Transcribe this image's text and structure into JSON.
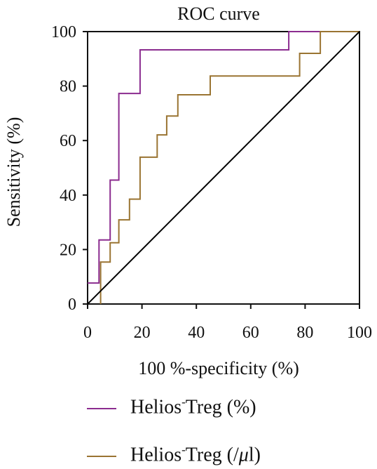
{
  "chart_data": {
    "type": "line",
    "title": "ROC curve",
    "xlabel": "100 %-specificity (%)",
    "ylabel": "Sensitivity (%)",
    "xlim": [
      0,
      100
    ],
    "ylim": [
      0,
      100
    ],
    "xticks": [
      "0",
      "20",
      "40",
      "60",
      "80",
      "100"
    ],
    "yticks": [
      "0",
      "20",
      "40",
      "60",
      "80",
      "100"
    ],
    "grid": false,
    "legend_position": "bottom",
    "series": [
      {
        "name": "Helios-Treg (%)",
        "color": "#8b2c8f",
        "x": [
          0,
          4.2,
          4.2,
          8.3,
          8.3,
          11.5,
          11.5,
          19.3,
          19.3,
          74,
          74,
          100
        ],
        "y": [
          7.7,
          7.7,
          23.5,
          23.5,
          45.5,
          45.5,
          77.3,
          77.3,
          93.3,
          93.3,
          100,
          100
        ]
      },
      {
        "name": "Helios-Treg (/μl)",
        "color": "#9a7432",
        "x": [
          4.8,
          4.8,
          8.3,
          8.3,
          11.5,
          11.5,
          15.4,
          15.4,
          19.3,
          19.3,
          25.6,
          25.6,
          29.1,
          29.1,
          33.2,
          33.2,
          45.1,
          45.1,
          78,
          78,
          85.6,
          85.6,
          100
        ],
        "y": [
          0,
          15.4,
          15.4,
          22.5,
          22.5,
          30.9,
          30.9,
          38.5,
          38.5,
          53.9,
          53.9,
          62.1,
          62.1,
          69,
          69,
          76.8,
          76.8,
          83.7,
          83.7,
          92,
          92,
          100,
          100
        ]
      },
      {
        "name": "",
        "color": "#000000",
        "x": [
          0,
          100
        ],
        "y": [
          0,
          100
        ]
      }
    ]
  },
  "legend": {
    "items": [
      {
        "base": "Helios",
        "sup": "-",
        "rest": "Treg (%)",
        "color": "#8b2c8f"
      },
      {
        "base": "Helios",
        "sup": "-",
        "rest": "Treg (/",
        "mu": "μ",
        "tail": "l)",
        "color": "#9a7432"
      }
    ]
  }
}
